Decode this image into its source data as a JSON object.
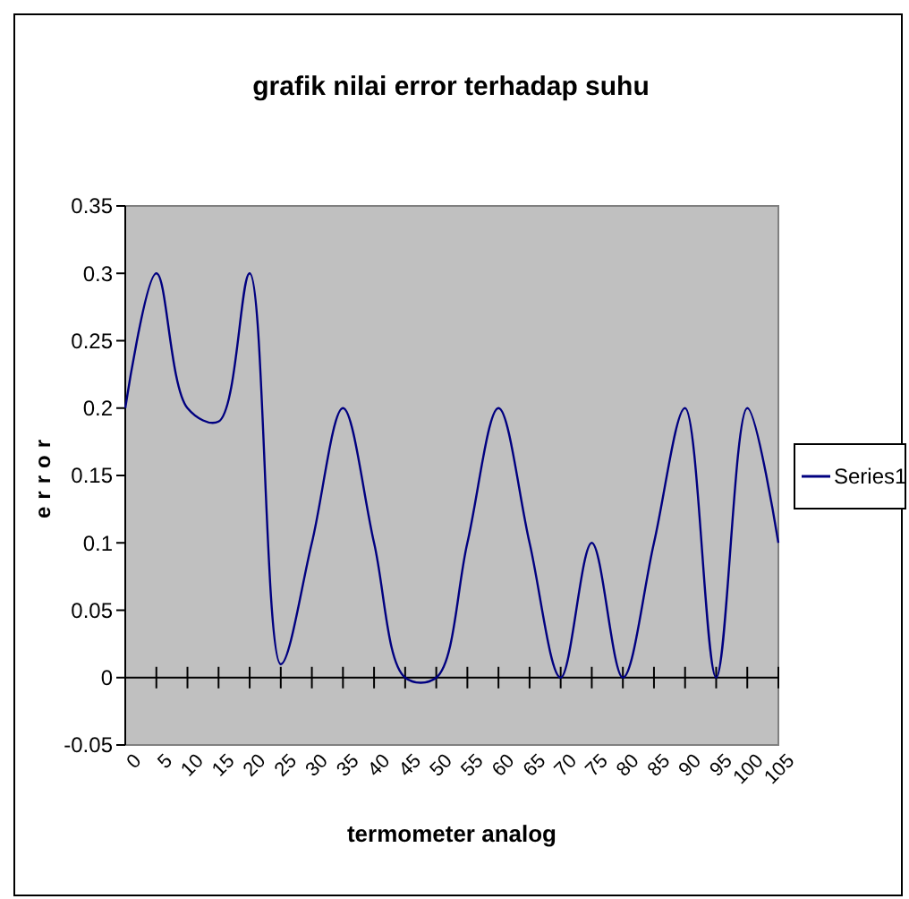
{
  "chart_data": {
    "type": "line",
    "title": "grafik nilai error terhadap suhu",
    "xlabel": "termometer analog",
    "ylabel": "error",
    "categories": [
      "0",
      "5",
      "10",
      "15",
      "20",
      "25",
      "30",
      "35",
      "40",
      "45",
      "50",
      "55",
      "60",
      "65",
      "70",
      "75",
      "80",
      "85",
      "90",
      "95",
      "100",
      "105"
    ],
    "series": [
      {
        "name": "Series1",
        "color": "#000080",
        "values": [
          0.2,
          0.3,
          0.2,
          0.19,
          0.3,
          0.01,
          0.1,
          0.2,
          0.1,
          0,
          0,
          0.1,
          0.2,
          0.1,
          0,
          0.1,
          0,
          0.1,
          0.2,
          0,
          0.2,
          0.1
        ]
      }
    ],
    "ylim": [
      -0.05,
      0.35
    ],
    "yticks": [
      -0.05,
      0,
      0.05,
      0.1,
      0.15,
      0.2,
      0.25,
      0.3,
      0.35
    ],
    "legend": "right",
    "marker": "none",
    "line_style": "solid"
  }
}
